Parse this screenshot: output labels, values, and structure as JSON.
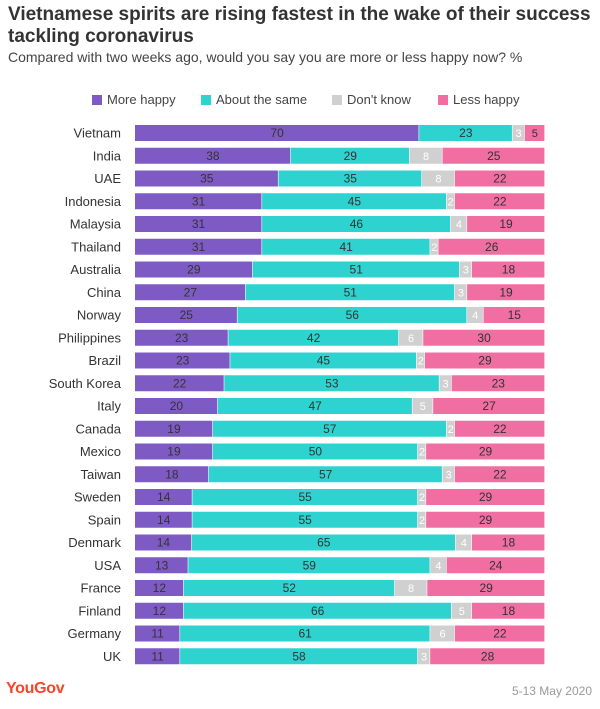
{
  "title": "Vietnamese spirits are rising fastest in the wake of their success tackling coronavirus",
  "subtitle": "Compared with two weeks ago, would you say you are more or less happy now? %",
  "footer": {
    "brand": "YouGov",
    "date": "5-13 May 2020"
  },
  "colors": {
    "More happy": "#7e5bc4",
    "About the same": "#2ed3cf",
    "Don't know": "#d0d0d0",
    "Less happy": "#f06ea1"
  },
  "chart_data": {
    "type": "bar",
    "orientation": "horizontal",
    "stacked": true,
    "legend_position": "top",
    "grid": false,
    "xlim": [
      0,
      100
    ],
    "categories": [
      "Vietnam",
      "India",
      "UAE",
      "Indonesia",
      "Malaysia",
      "Thailand",
      "Australia",
      "China",
      "Norway",
      "Philippines",
      "Brazil",
      "South Korea",
      "Italy",
      "Canada",
      "Mexico",
      "Taiwan",
      "Sweden",
      "Spain",
      "Denmark",
      "USA",
      "France",
      "Finland",
      "Germany",
      "UK"
    ],
    "series": [
      {
        "name": "More happy",
        "values": [
          70,
          38,
          35,
          31,
          31,
          31,
          29,
          27,
          25,
          23,
          23,
          22,
          20,
          19,
          19,
          18,
          14,
          14,
          14,
          13,
          12,
          12,
          11,
          11
        ]
      },
      {
        "name": "About the same",
        "values": [
          23,
          29,
          35,
          45,
          46,
          41,
          51,
          51,
          56,
          42,
          45,
          53,
          47,
          57,
          50,
          57,
          55,
          55,
          65,
          59,
          52,
          66,
          61,
          58
        ]
      },
      {
        "name": "Don't know",
        "values": [
          3,
          8,
          8,
          2,
          4,
          2,
          3,
          3,
          4,
          6,
          2,
          3,
          5,
          2,
          2,
          3,
          2,
          2,
          4,
          4,
          8,
          5,
          6,
          3
        ]
      },
      {
        "name": "Less happy",
        "values": [
          5,
          25,
          22,
          22,
          19,
          26,
          18,
          19,
          15,
          30,
          29,
          23,
          27,
          22,
          29,
          22,
          29,
          29,
          18,
          24,
          29,
          18,
          22,
          28
        ]
      }
    ]
  }
}
